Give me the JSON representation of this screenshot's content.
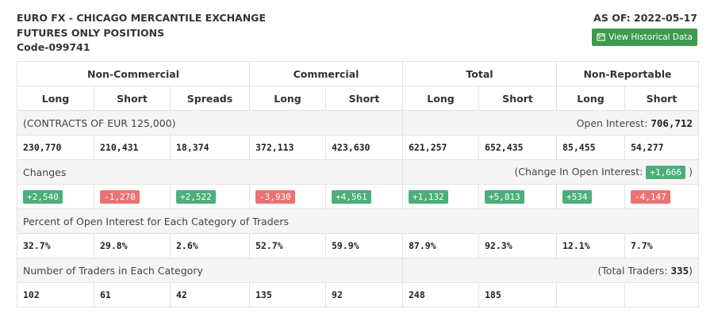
{
  "header": {
    "title_line1": "EURO FX - CHICAGO MERCANTILE EXCHANGE",
    "title_line2": "FUTURES ONLY POSITIONS",
    "code": "Code-099741",
    "as_of": "AS OF: 2022-05-17",
    "history_button": "View Historical Data",
    "history_icon": "calendar-icon",
    "button_color": "#3d9a4e"
  },
  "groups": [
    "Non-Commercial",
    "Commercial",
    "Total",
    "Non-Reportable"
  ],
  "columns": [
    "Long",
    "Short",
    "Spreads",
    "Long",
    "Short",
    "Long",
    "Short",
    "Long",
    "Short"
  ],
  "contracts": {
    "label": "(CONTRACTS OF EUR 125,000)",
    "oi_label": "Open Interest:",
    "oi_value": "706,712",
    "values": [
      "230,770",
      "210,431",
      "18,374",
      "372,113",
      "423,630",
      "621,257",
      "652,435",
      "85,455",
      "54,277"
    ]
  },
  "changes": {
    "label": "Changes",
    "oi_prefix": "(Change In Open Interest:",
    "oi_value": "+1,666",
    "oi_suffix": ")",
    "values": [
      "+2,540",
      "-1,270",
      "+2,522",
      "-3,930",
      "+4,561",
      "+1,132",
      "+5,813",
      "+534",
      "-4,147"
    ],
    "positive_color": "#4caf7a",
    "negative_color": "#ec7373"
  },
  "percent": {
    "label": "Percent of Open Interest for Each Category of Traders",
    "values": [
      "32.7%",
      "29.8%",
      "2.6%",
      "52.7%",
      "59.9%",
      "87.9%",
      "92.3%",
      "12.1%",
      "7.7%"
    ]
  },
  "traders": {
    "label": "Number of Traders in Each Category",
    "total_prefix": "(Total Traders:",
    "total_value": "335",
    "total_suffix": ")",
    "values": [
      "102",
      "61",
      "42",
      "135",
      "92",
      "248",
      "185",
      "",
      ""
    ]
  }
}
